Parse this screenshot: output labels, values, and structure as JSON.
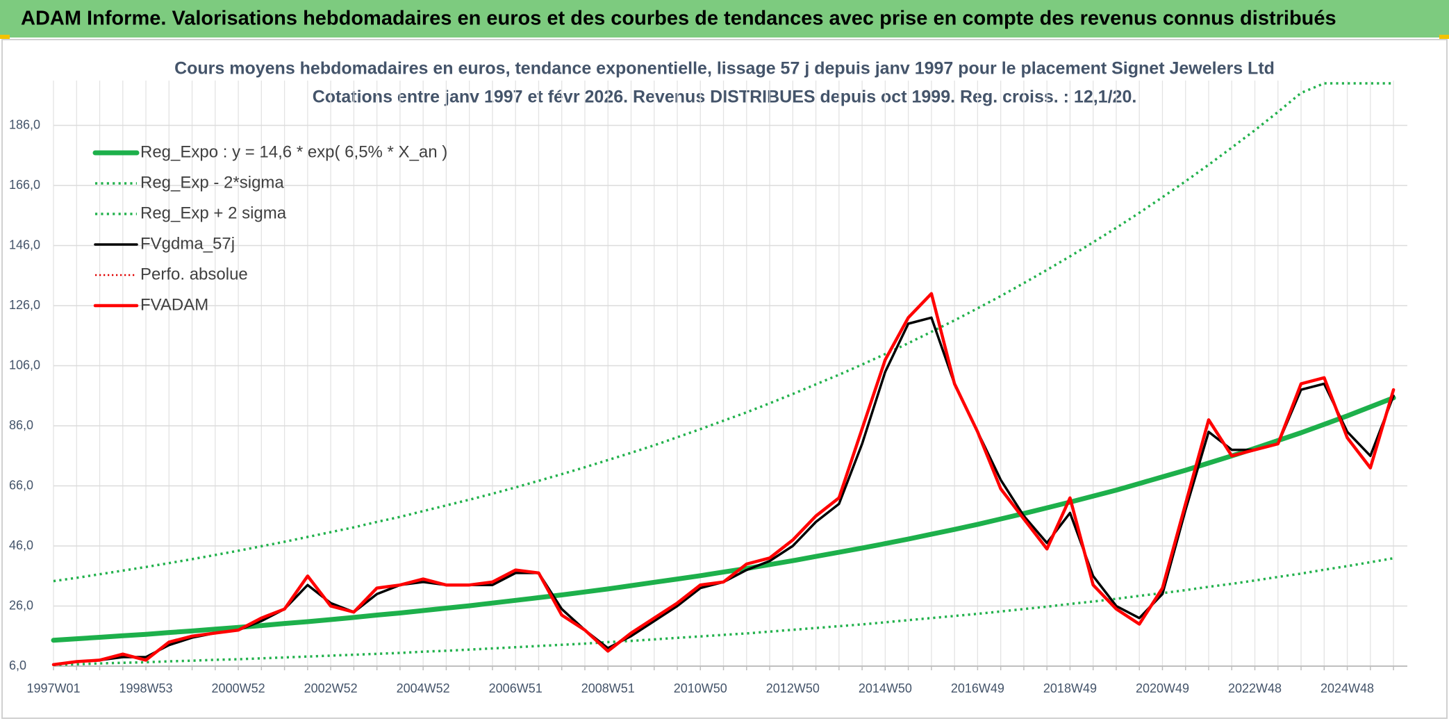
{
  "header": {
    "title": "ADAM Informe. Valorisations hebdomadaires en euros et des courbes de tendances avec prise en compte des revenus connus distribués"
  },
  "chart_data": {
    "type": "line",
    "title": "Cours moyens hebdomadaires en euros, tendance exponentielle, lissage 57 j depuis janv 1997 pour le placement Signet Jewelers Ltd",
    "subtitle": "Cotations entre janv 1997 et févr 2026. Revenus DISTRIBUES depuis oct 1999. Reg. croiss. : 12,1/20.",
    "categories": [
      "1997W01",
      null,
      null,
      null,
      "1998W53",
      null,
      null,
      null,
      "2000W52",
      null,
      null,
      null,
      "2002W52",
      null,
      null,
      null,
      "2004W52",
      null,
      null,
      null,
      "2006W51",
      null,
      null,
      null,
      "2008W51",
      null,
      null,
      null,
      "2010W50",
      null,
      null,
      null,
      "2012W50",
      null,
      null,
      null,
      "2014W50",
      null,
      null,
      null,
      "2016W49",
      null,
      null,
      null,
      "2018W49",
      null,
      null,
      null,
      "2020W49",
      null,
      null,
      null,
      "2022W48",
      null,
      null,
      null,
      "2024W48",
      null,
      null
    ],
    "ylim": [
      6,
      200
    ],
    "yticks": [
      {
        "value": 6,
        "label": "6,0"
      },
      {
        "value": 26,
        "label": "26,0"
      },
      {
        "value": 46,
        "label": "46,0"
      },
      {
        "value": 66,
        "label": "66,0"
      },
      {
        "value": 86,
        "label": "86,0"
      },
      {
        "value": 106,
        "label": "106,0"
      },
      {
        "value": 126,
        "label": "126,0"
      },
      {
        "value": 146,
        "label": "146,0"
      },
      {
        "value": 166,
        "label": "166,0"
      },
      {
        "value": 186,
        "label": "186,0"
      }
    ],
    "grid": true,
    "legend": "upper left",
    "series": [
      {
        "name": "Reg_Expo : y = 14,6 * exp( 6,5% *  X_an )",
        "color": "#1db04b",
        "style": "solid",
        "width": 7,
        "values": [
          14.6,
          15.1,
          15.6,
          16.1,
          16.6,
          17.2,
          17.7,
          18.3,
          18.9,
          19.5,
          20.2,
          20.8,
          21.5,
          22.2,
          23.0,
          23.7,
          24.5,
          25.3,
          26.1,
          27.0,
          27.9,
          28.8,
          29.7,
          30.7,
          31.7,
          32.8,
          33.9,
          35.0,
          36.1,
          37.3,
          38.5,
          39.8,
          41.1,
          42.5,
          43.9,
          45.3,
          46.8,
          48.3,
          49.9,
          51.5,
          53.2,
          55.0,
          56.8,
          58.7,
          60.6,
          62.6,
          64.6,
          66.8,
          69.0,
          71.2,
          73.6,
          76.0,
          78.5,
          81.1,
          83.7,
          86.5,
          89.3,
          92.3,
          95.3
        ]
      },
      {
        "name": "Reg_Exp - 2*sigma",
        "color": "#22b14c",
        "style": "dotted",
        "width": 3.5,
        "values": [
          6.4,
          6.6,
          6.9,
          7.1,
          7.3,
          7.6,
          7.8,
          8.1,
          8.3,
          8.6,
          8.9,
          9.2,
          9.5,
          9.8,
          10.1,
          10.4,
          10.8,
          11.1,
          11.5,
          11.9,
          12.3,
          12.7,
          13.1,
          13.5,
          14.0,
          14.4,
          14.9,
          15.4,
          15.9,
          16.4,
          16.9,
          17.5,
          18.1,
          18.7,
          19.3,
          19.9,
          20.6,
          21.3,
          22.0,
          22.7,
          23.4,
          24.2,
          25.0,
          25.8,
          26.7,
          27.5,
          28.4,
          29.4,
          30.3,
          31.3,
          32.4,
          33.4,
          34.5,
          35.7,
          36.8,
          38.1,
          39.3,
          40.6,
          41.9
        ]
      },
      {
        "name": "Reg_Exp + 2 sigma",
        "color": "#22b14c",
        "style": "dotted",
        "width": 3.5,
        "values": [
          34.3,
          35.4,
          36.6,
          37.8,
          39.0,
          40.3,
          41.6,
          43.0,
          44.4,
          45.9,
          47.4,
          49.0,
          50.6,
          52.2,
          54.0,
          55.7,
          57.6,
          59.5,
          61.4,
          63.4,
          65.5,
          67.7,
          69.9,
          72.2,
          74.6,
          77.0,
          79.5,
          82.2,
          84.9,
          87.7,
          90.5,
          93.5,
          96.6,
          99.8,
          103.0,
          106.4,
          109.9,
          113.5,
          117.3,
          121.1,
          125.1,
          129.2,
          133.5,
          137.9,
          142.4,
          147.1,
          151.9,
          156.9,
          162.1,
          167.4,
          172.9,
          178.6,
          184.4,
          190.5,
          196.8,
          200,
          200,
          200,
          200
        ]
      },
      {
        "name": "FVgdma_57j",
        "color": "#000000",
        "style": "solid",
        "width": 3.5,
        "values": [
          6.5,
          7.5,
          8,
          9,
          9,
          13,
          15.5,
          17,
          18,
          21,
          25,
          33,
          27,
          24,
          30,
          33,
          34,
          33,
          33,
          33,
          37,
          37,
          25,
          18,
          12,
          16,
          21,
          26,
          32,
          34,
          38,
          41,
          46,
          54,
          60,
          80,
          104,
          120,
          122,
          100,
          84,
          68,
          56,
          47,
          57,
          36,
          26,
          22,
          30,
          58,
          84,
          78,
          78,
          80,
          98,
          100,
          84,
          76,
          96
        ]
      },
      {
        "name": "Perfo. absolue",
        "color": "#e00000",
        "style": "dotted",
        "width": 2.5,
        "values": [
          null,
          null,
          null,
          null,
          null,
          null,
          null,
          null,
          null,
          null,
          null,
          null,
          null,
          null,
          null,
          null,
          null,
          null,
          null,
          null,
          null,
          null,
          null,
          null,
          null,
          null,
          null,
          null,
          null,
          null,
          null,
          null,
          null,
          null,
          null,
          null,
          null,
          null,
          null,
          null,
          null,
          null,
          null,
          null,
          null,
          null,
          null,
          null,
          null,
          null,
          null,
          null,
          null,
          null,
          null,
          null,
          null,
          null,
          null
        ]
      },
      {
        "name": "FVADAM",
        "color": "#ff0000",
        "style": "solid",
        "width": 4.5,
        "values": [
          6.5,
          7.5,
          8,
          10,
          8,
          14,
          16,
          17,
          18,
          22,
          25,
          36,
          26,
          24,
          32,
          33,
          35,
          33,
          33,
          34,
          38,
          37,
          23,
          18,
          11,
          17,
          22,
          27,
          33,
          34,
          40,
          42,
          48,
          56,
          62,
          85,
          108,
          122,
          130,
          100,
          84,
          65,
          55,
          45,
          62,
          33,
          25,
          20,
          32,
          60,
          88,
          76,
          78,
          80,
          100,
          102,
          82,
          72,
          98
        ]
      }
    ]
  }
}
